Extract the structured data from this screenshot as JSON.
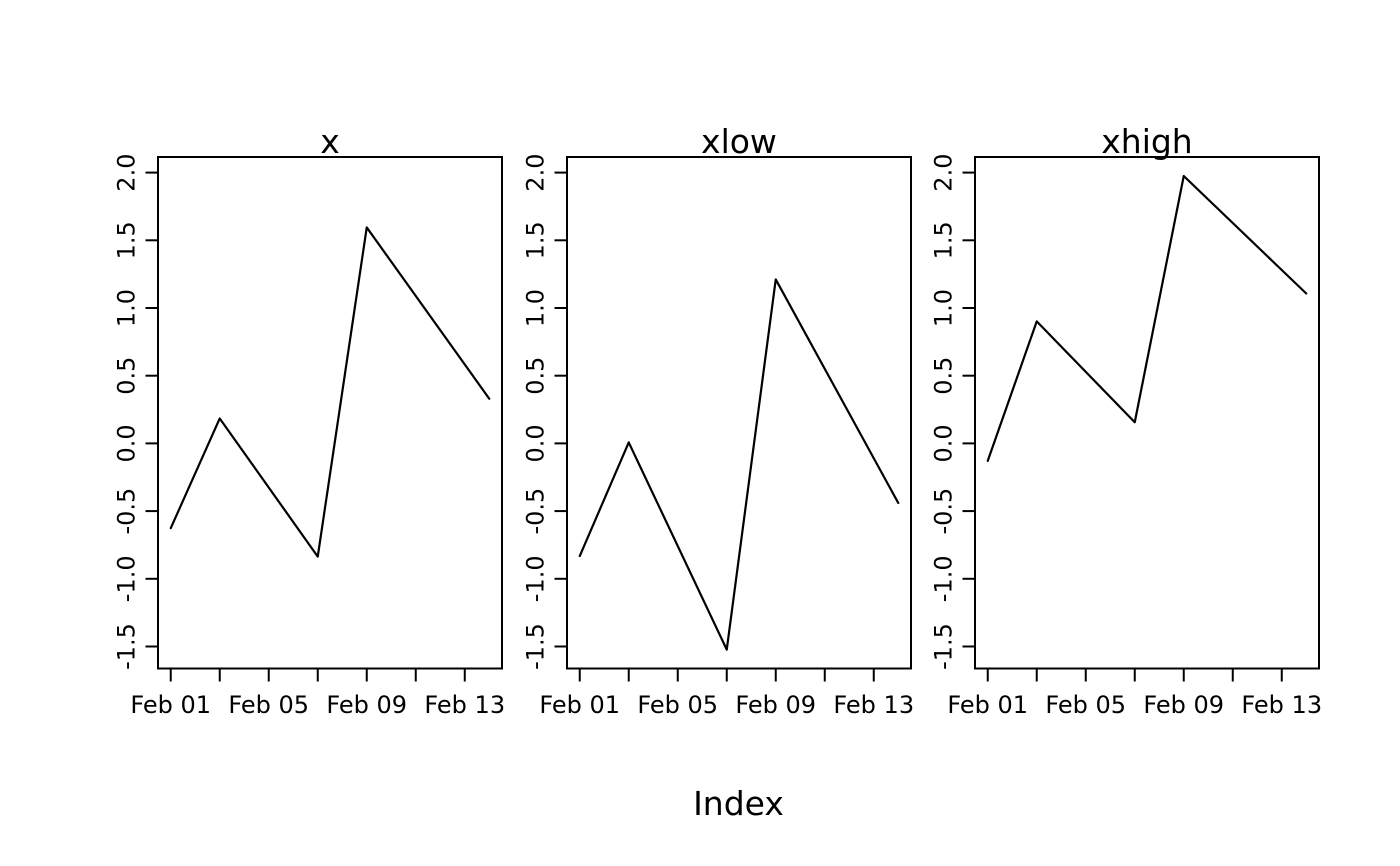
{
  "figure": {
    "xlabel": "Index",
    "background_color": "#ffffff",
    "line_color": "#000000",
    "text_color": "#000000"
  },
  "chart_data": {
    "type": "line",
    "layout": "three-panels-side-by-side",
    "xlabel": "Index",
    "x_dates": [
      "Feb 01",
      "Feb 03",
      "Feb 07",
      "Feb 09",
      "Feb 14"
    ],
    "x_day_offsets": [
      0,
      2,
      6,
      8,
      13
    ],
    "series": [
      {
        "name": "x",
        "title": "x",
        "values": [
          -0.626,
          0.184,
          -0.836,
          1.595,
          0.33
        ]
      },
      {
        "name": "xlow",
        "title": "xlow",
        "values": [
          -0.832,
          0.007,
          -1.523,
          1.211,
          -0.44
        ]
      },
      {
        "name": "xhigh",
        "title": "xhigh",
        "values": [
          -0.129,
          0.901,
          0.156,
          1.975,
          1.107
        ]
      }
    ],
    "x_tick_day_offsets": [
      0,
      2,
      4,
      6,
      8,
      10,
      12
    ],
    "x_tick_labels": [
      "Feb 01",
      "",
      "Feb 05",
      "",
      "Feb 09",
      "",
      "Feb 13"
    ],
    "y_ticks": [
      2.0,
      1.5,
      1.0,
      0.5,
      0.0,
      -0.5,
      -1.0,
      -1.5
    ],
    "y_tick_labels": [
      "2.0",
      "1.5",
      "1.0",
      "0.5",
      "0.0",
      "-0.5",
      "-1.0",
      "-1.5"
    ],
    "ylim": [
      -1.6626,
      2.1152
    ],
    "xlim_days": [
      -0.52,
      13.52
    ],
    "grid": false,
    "legend": false
  }
}
